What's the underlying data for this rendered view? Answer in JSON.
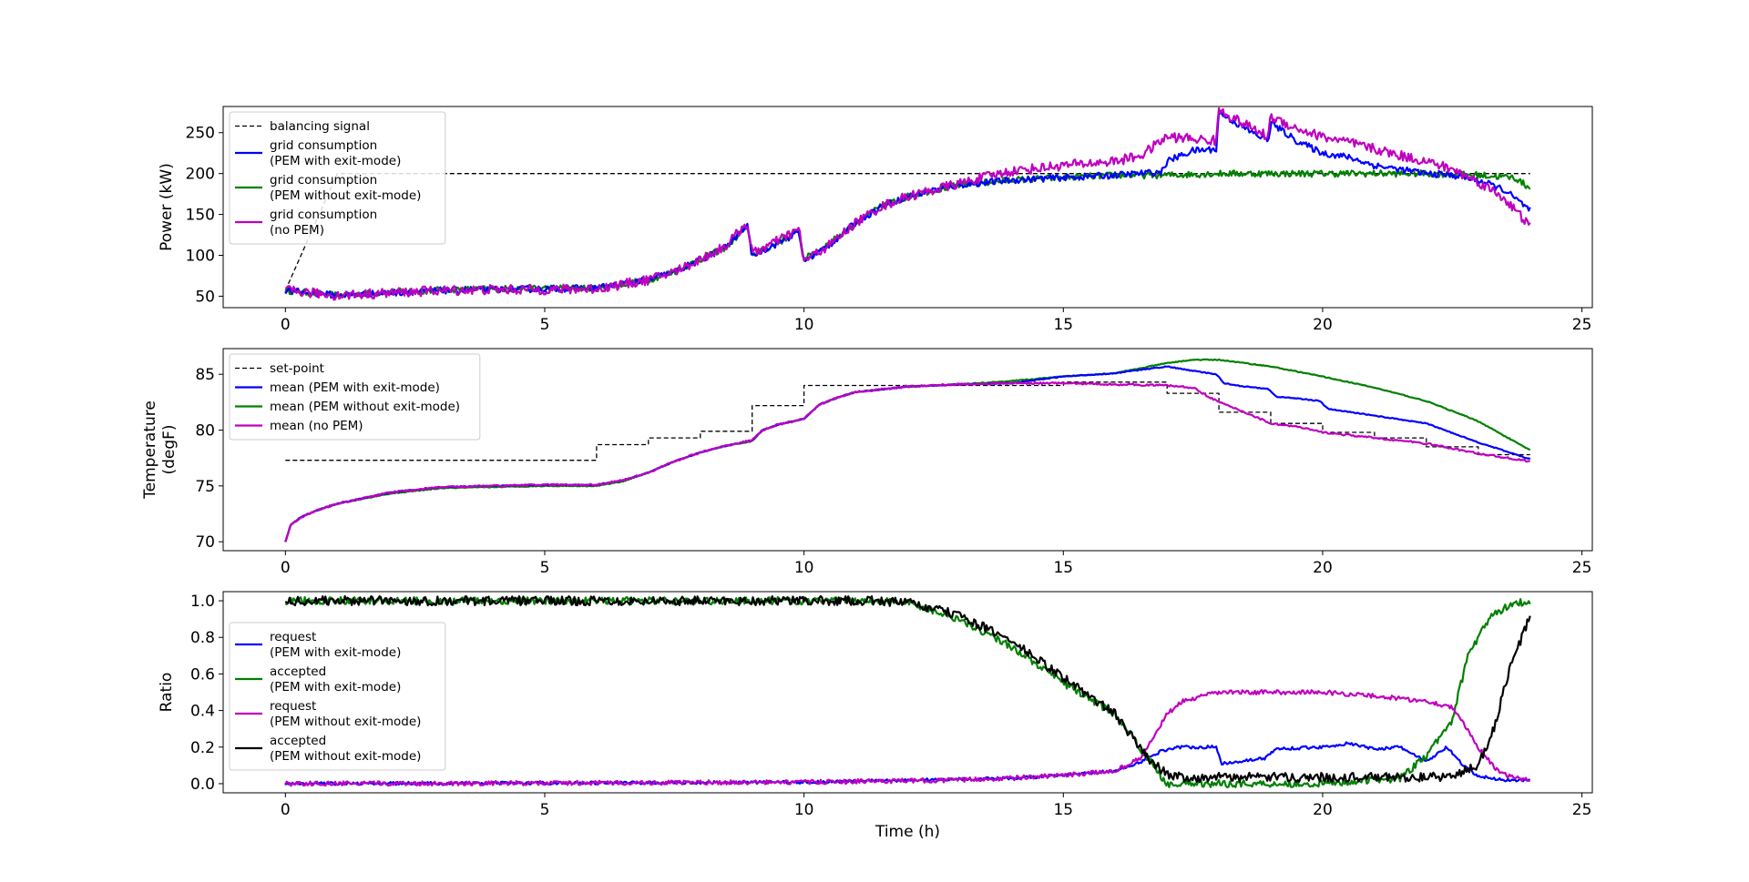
{
  "chart_data": [
    {
      "type": "line",
      "ylabel": [
        "Power (kW)"
      ],
      "xlabel": "",
      "xlim": [
        -1.2,
        25.2
      ],
      "ylim": [
        36,
        282
      ],
      "xticks": [
        0,
        5,
        10,
        15,
        20,
        25
      ],
      "yticks": [
        50,
        100,
        150,
        200,
        250
      ],
      "legend_position": "upper-left",
      "legend": [
        {
          "lines": [
            "balancing signal"
          ],
          "color": "#000000",
          "dashed": true
        },
        {
          "lines": [
            "grid consumption",
            "(PEM with exit-mode)"
          ],
          "color": "#0000ff",
          "dashed": false
        },
        {
          "lines": [
            "grid consumption",
            "(PEM without exit-mode)"
          ],
          "color": "#008000",
          "dashed": false
        },
        {
          "lines": [
            "grid consumption",
            "(no PEM)"
          ],
          "color": "#bf00bf",
          "dashed": false
        }
      ],
      "series": [
        {
          "name": "balancing signal",
          "color": "#000000",
          "dashed": true,
          "step": false,
          "x": [
            0,
            1,
            2,
            3,
            4,
            5,
            6,
            7,
            8,
            9,
            10,
            11,
            12,
            13,
            14,
            15,
            16,
            17,
            18,
            19,
            20,
            21,
            22,
            23,
            24
          ],
          "y": [
            57,
            200,
            200,
            200,
            200,
            200,
            200,
            200,
            200,
            200,
            200,
            200,
            200,
            200,
            200,
            200,
            200,
            200,
            200,
            200,
            200,
            200,
            200,
            200,
            200
          ]
        },
        {
          "name": "grid consumption (PEM without exit-mode)",
          "color": "#008000",
          "dashed": false,
          "step": false,
          "noise": 4,
          "x": [
            0,
            0.5,
            1,
            2,
            3,
            4,
            5,
            6,
            7,
            7.5,
            8,
            8.5,
            8.9,
            9.0,
            9.5,
            9.9,
            10.0,
            10.5,
            11,
            11.5,
            12,
            12.5,
            13,
            14,
            15,
            16,
            17,
            18,
            19,
            20,
            21,
            22,
            23,
            23.7,
            24
          ],
          "y": [
            57,
            54,
            51,
            55,
            58,
            59,
            60,
            60,
            70,
            80,
            95,
            110,
            135,
            100,
            115,
            130,
            95,
            115,
            140,
            160,
            172,
            180,
            186,
            192,
            195,
            198,
            198,
            200,
            200,
            200,
            200,
            200,
            198,
            195,
            182
          ]
        },
        {
          "name": "grid consumption (PEM with exit-mode)",
          "color": "#0000ff",
          "dashed": false,
          "step": false,
          "noise": 4,
          "x": [
            0,
            0.5,
            1,
            2,
            3,
            4,
            5,
            6,
            7,
            7.5,
            8,
            8.5,
            8.9,
            9.0,
            9.5,
            9.9,
            10.0,
            10.5,
            11,
            11.5,
            12,
            12.5,
            13,
            14,
            15,
            16,
            16.9,
            17.0,
            17.5,
            17.95,
            18.0,
            18.5,
            18.95,
            19.0,
            19.5,
            20,
            20.5,
            21,
            21.5,
            22,
            22.5,
            23,
            23.5,
            24
          ],
          "y": [
            57,
            54,
            51,
            54,
            57,
            58,
            59,
            60,
            70,
            80,
            94,
            110,
            137,
            100,
            115,
            128,
            93,
            113,
            140,
            160,
            172,
            180,
            186,
            192,
            195,
            198,
            202,
            215,
            228,
            230,
            275,
            255,
            240,
            262,
            240,
            225,
            220,
            210,
            205,
            200,
            198,
            192,
            180,
            155
          ]
        },
        {
          "name": "grid consumption (no PEM)",
          "color": "#bf00bf",
          "dashed": false,
          "step": false,
          "noise": 6,
          "x": [
            0,
            0.5,
            1,
            2,
            3,
            4,
            5,
            6,
            7,
            7.5,
            8,
            8.5,
            8.9,
            9.0,
            9.5,
            9.9,
            10.0,
            10.5,
            11,
            11.5,
            12,
            12.5,
            13,
            13.5,
            14,
            15,
            16,
            16.5,
            17,
            17.95,
            18.0,
            18.5,
            18.95,
            19.0,
            19.5,
            20,
            20.5,
            21,
            21.5,
            22,
            22.5,
            23,
            23.5,
            24
          ],
          "y": [
            57,
            54,
            51,
            54,
            57,
            58,
            58,
            59,
            70,
            80,
            95,
            112,
            140,
            102,
            118,
            132,
            93,
            113,
            140,
            160,
            172,
            180,
            188,
            196,
            203,
            210,
            215,
            222,
            245,
            240,
            278,
            260,
            245,
            270,
            255,
            245,
            238,
            230,
            222,
            215,
            205,
            190,
            170,
            135
          ]
        }
      ]
    },
    {
      "type": "line",
      "ylabel": [
        "Temperature",
        "(degF)"
      ],
      "xlabel": "",
      "xlim": [
        -1.2,
        25.2
      ],
      "ylim": [
        69.2,
        87.3
      ],
      "xticks": [
        0,
        5,
        10,
        15,
        20,
        25
      ],
      "yticks": [
        70,
        75,
        80,
        85
      ],
      "legend_position": "upper-left",
      "legend": [
        {
          "lines": [
            "set-point"
          ],
          "color": "#000000",
          "dashed": true
        },
        {
          "lines": [
            "mean (PEM with exit-mode)"
          ],
          "color": "#0000ff",
          "dashed": false
        },
        {
          "lines": [
            "mean (PEM without exit-mode)"
          ],
          "color": "#008000",
          "dashed": false
        },
        {
          "lines": [
            "mean (no PEM)"
          ],
          "color": "#bf00bf",
          "dashed": false
        }
      ],
      "series": [
        {
          "name": "set-point",
          "color": "#000000",
          "dashed": true,
          "step": true,
          "x": [
            0,
            6,
            7,
            8,
            9,
            10,
            11,
            12,
            13,
            14,
            15,
            16,
            17,
            18,
            19,
            20,
            21,
            22,
            23,
            24
          ],
          "y": [
            77.3,
            78.7,
            79.3,
            79.9,
            82.2,
            84.0,
            84.0,
            84.0,
            84.0,
            84.0,
            84.3,
            84.3,
            83.3,
            81.6,
            80.6,
            79.8,
            79.3,
            78.5,
            77.8,
            77.8
          ]
        },
        {
          "name": "mean (PEM without exit-mode)",
          "color": "#008000",
          "dashed": false,
          "step": false,
          "noise": 0.04,
          "x": [
            0,
            0.1,
            0.3,
            0.6,
            1,
            2,
            3,
            4,
            5,
            6,
            6.5,
            7,
            7.5,
            8,
            8.5,
            9,
            9.2,
            9.5,
            10,
            10.3,
            10.7,
            11,
            12,
            13,
            14,
            15,
            16,
            17,
            17.5,
            18,
            19,
            20,
            21,
            22,
            23,
            24
          ],
          "y": [
            70,
            71.5,
            72.2,
            72.8,
            73.4,
            74.3,
            74.8,
            74.9,
            75.0,
            75.0,
            75.4,
            76.2,
            77.2,
            78.0,
            78.6,
            79.0,
            80.0,
            80.5,
            81.0,
            82.3,
            83.0,
            83.4,
            83.9,
            84.1,
            84.4,
            84.8,
            85.1,
            86.0,
            86.3,
            86.3,
            85.7,
            84.8,
            83.8,
            82.6,
            80.8,
            78.2
          ]
        },
        {
          "name": "mean (PEM with exit-mode)",
          "color": "#0000ff",
          "dashed": false,
          "step": false,
          "noise": 0.04,
          "x": [
            0,
            0.1,
            0.3,
            0.6,
            1,
            2,
            3,
            4,
            5,
            6,
            6.5,
            7,
            7.5,
            8,
            8.5,
            9,
            9.2,
            9.5,
            10,
            10.3,
            10.7,
            11,
            12,
            13,
            14,
            15,
            16,
            17,
            17.5,
            17.95,
            18.1,
            18.5,
            18.95,
            19.1,
            19.6,
            19.95,
            20.1,
            21,
            22,
            23,
            24
          ],
          "y": [
            70,
            71.5,
            72.2,
            72.8,
            73.4,
            74.4,
            74.9,
            75.0,
            75.1,
            75.1,
            75.5,
            76.2,
            77.2,
            78.0,
            78.6,
            79.1,
            80.0,
            80.5,
            81.0,
            82.3,
            83.0,
            83.4,
            83.9,
            84.1,
            84.2,
            84.8,
            85.1,
            85.7,
            85.3,
            85.0,
            84.2,
            83.9,
            83.7,
            83.0,
            82.8,
            82.6,
            81.9,
            81.3,
            80.6,
            78.9,
            77.4
          ]
        },
        {
          "name": "mean (no PEM)",
          "color": "#bf00bf",
          "dashed": false,
          "step": false,
          "noise": 0.08,
          "x": [
            0,
            0.1,
            0.3,
            0.6,
            1,
            2,
            3,
            4,
            5,
            6,
            6.5,
            7,
            7.5,
            8,
            8.5,
            9,
            9.2,
            9.5,
            10,
            10.3,
            10.7,
            11,
            12,
            13,
            14,
            15,
            16,
            17,
            17.5,
            18,
            18.5,
            19,
            19.5,
            20,
            21,
            22,
            23,
            24
          ],
          "y": [
            70,
            71.5,
            72.2,
            72.8,
            73.4,
            74.4,
            74.9,
            75.0,
            75.1,
            75.1,
            75.5,
            76.2,
            77.2,
            78.0,
            78.6,
            79.1,
            80.0,
            80.5,
            81.0,
            82.3,
            83.0,
            83.4,
            83.9,
            84.1,
            84.2,
            84.2,
            84.1,
            84.0,
            83.8,
            82.5,
            81.6,
            80.6,
            80.3,
            79.8,
            79.3,
            78.8,
            77.9,
            77.2
          ]
        }
      ]
    },
    {
      "type": "line",
      "ylabel": [
        "Ratio"
      ],
      "xlabel": "Time (h)",
      "xlim": [
        -1.2,
        25.2
      ],
      "ylim": [
        -0.05,
        1.05
      ],
      "xticks": [
        0,
        5,
        10,
        15,
        20,
        25
      ],
      "yticks": [
        0.0,
        0.2,
        0.4,
        0.6,
        0.8,
        1.0
      ],
      "legend_position": "center-left",
      "legend": [
        {
          "lines": [
            "request",
            "(PEM with exit-mode)"
          ],
          "color": "#0000ff",
          "dashed": false
        },
        {
          "lines": [
            "accepted",
            "(PEM with exit-mode)"
          ],
          "color": "#008000",
          "dashed": false
        },
        {
          "lines": [
            "request",
            "(PEM without exit-mode)"
          ],
          "color": "#bf00bf",
          "dashed": false
        },
        {
          "lines": [
            "accepted",
            "(PEM without exit-mode)"
          ],
          "color": "#000000",
          "dashed": false
        }
      ],
      "series": [
        {
          "name": "request (PEM with exit-mode)",
          "color": "#0000ff",
          "dashed": false,
          "step": false,
          "noise": 0.008,
          "x": [
            0,
            5,
            10,
            14,
            15,
            16,
            16.5,
            16.9,
            17.2,
            17.95,
            18.05,
            18.9,
            19.1,
            20,
            20.5,
            21,
            21.5,
            22,
            22.4,
            22.7,
            23,
            23.5,
            24
          ],
          "y": [
            0,
            0.003,
            0.008,
            0.03,
            0.045,
            0.07,
            0.12,
            0.18,
            0.2,
            0.2,
            0.11,
            0.14,
            0.19,
            0.2,
            0.22,
            0.19,
            0.2,
            0.12,
            0.2,
            0.1,
            0.04,
            0.02,
            0.02
          ]
        },
        {
          "name": "accepted (PEM with exit-mode)",
          "color": "#008000",
          "dashed": false,
          "step": false,
          "noise": 0.02,
          "x": [
            0,
            11.4,
            12,
            13,
            14,
            15,
            16,
            16.6,
            17,
            18,
            20,
            21,
            21.5,
            22,
            22.5,
            22.8,
            23.2,
            23.6,
            24
          ],
          "y": [
            1.0,
            1.0,
            0.99,
            0.9,
            0.75,
            0.55,
            0.38,
            0.15,
            0.0,
            0.0,
            0.0,
            0.02,
            0.03,
            0.15,
            0.35,
            0.7,
            0.9,
            0.98,
            1.0
          ]
        },
        {
          "name": "request (PEM without exit-mode)",
          "color": "#bf00bf",
          "dashed": false,
          "step": false,
          "noise": 0.012,
          "x": [
            0,
            5,
            10,
            13,
            14,
            15,
            16,
            16.5,
            17,
            17.3,
            18,
            19,
            20,
            21,
            22,
            22.5,
            23,
            23.4,
            23.7,
            24
          ],
          "y": [
            0,
            0.003,
            0.008,
            0.02,
            0.03,
            0.045,
            0.07,
            0.14,
            0.38,
            0.45,
            0.5,
            0.5,
            0.5,
            0.48,
            0.45,
            0.42,
            0.2,
            0.06,
            0.03,
            0.02
          ]
        },
        {
          "name": "accepted (PEM without exit-mode)",
          "color": "#000000",
          "dashed": false,
          "step": false,
          "noise": 0.025,
          "x": [
            0,
            11.4,
            12,
            13,
            14,
            15,
            16,
            16.6,
            17,
            17.5,
            18,
            20,
            21,
            22,
            22.5,
            23,
            23.3,
            23.6,
            24
          ],
          "y": [
            1.0,
            1.0,
            0.99,
            0.92,
            0.78,
            0.58,
            0.38,
            0.15,
            0.05,
            0.03,
            0.035,
            0.035,
            0.035,
            0.035,
            0.04,
            0.1,
            0.3,
            0.62,
            0.92
          ]
        }
      ]
    }
  ]
}
